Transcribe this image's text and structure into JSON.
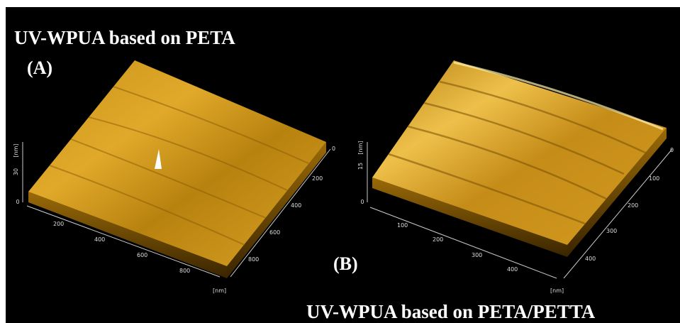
{
  "figure": {
    "panels": [
      {
        "title": "UV-WPUA based on PETA",
        "label": "(A)",
        "z_ticks": [
          "0",
          "30"
        ],
        "z_unit": "[nm]",
        "x_ticks": [
          "200",
          "400",
          "600",
          "800"
        ],
        "y_ticks": [
          "0",
          "200",
          "400",
          "600",
          "800"
        ],
        "xy_unit": "[nm]"
      },
      {
        "title": "UV-WPUA based on PETA/PETTA",
        "label": "(B)",
        "z_ticks": [
          "0",
          "15"
        ],
        "z_unit": "[nm]",
        "x_ticks": [
          "100",
          "200",
          "300",
          "400"
        ],
        "y_ticks": [
          "0",
          "100",
          "200",
          "300",
          "400"
        ],
        "xy_unit": "[nm]"
      }
    ]
  }
}
